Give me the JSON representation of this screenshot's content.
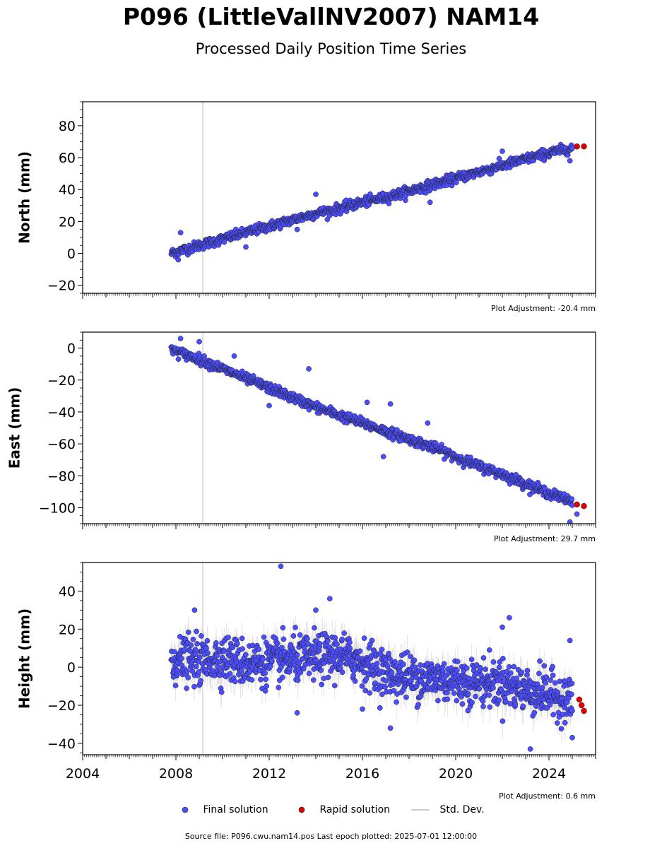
{
  "title": "P096 (LittleVallNV2007) NAM14",
  "subtitle": "Processed Daily Position Time Series",
  "footer": "Source file: P096.cwu.nam14.pos  Last epoch plotted: 2025-07-01 12:00:00",
  "legend": {
    "final": "Final solution",
    "rapid": "Rapid solution",
    "std": "Std. Dev."
  },
  "colors": {
    "final": "#4b4dff",
    "rapid": "#e00000",
    "std": "#cccccc",
    "marker_edge": "#222222"
  },
  "chart_data": [
    {
      "type": "scatter",
      "ylabel": "North (mm)",
      "adjustment": "Plot Adjustment: -20.4 mm",
      "xlim": [
        2004,
        2026
      ],
      "ylim": [
        -25,
        95
      ],
      "yticks": [
        -20,
        0,
        20,
        40,
        60,
        80
      ],
      "xticks": [
        2004,
        2008,
        2012,
        2016,
        2020,
        2024
      ],
      "xticklabels_visible": false,
      "vline": 2009.15,
      "final_series": {
        "name": "Final solution",
        "x": [
          2007.8,
          2008.0,
          2008.5,
          2009.0,
          2010.0,
          2011.0,
          2012.0,
          2013.0,
          2014.0,
          2015.0,
          2016.0,
          2017.0,
          2018.0,
          2019.0,
          2020.0,
          2021.0,
          2022.0,
          2023.0,
          2024.0,
          2025.0
        ],
        "y": [
          0,
          1,
          3,
          5,
          9,
          13,
          17,
          21,
          25,
          28,
          32,
          35,
          39,
          43,
          47,
          51,
          55,
          59,
          63,
          66
        ]
      },
      "rapid_series": {
        "name": "Rapid solution",
        "x": [
          2025.2,
          2025.5
        ],
        "y": [
          67,
          67
        ]
      },
      "outliers": [
        [
          2008.2,
          13
        ],
        [
          2008.1,
          -4
        ],
        [
          2011.0,
          4
        ],
        [
          2013.2,
          15
        ],
        [
          2014.0,
          37
        ],
        [
          2018.9,
          32
        ],
        [
          2022.0,
          64
        ],
        [
          2024.9,
          58
        ]
      ]
    },
    {
      "type": "scatter",
      "ylabel": "East (mm)",
      "adjustment": "Plot Adjustment: 29.7 mm",
      "xlim": [
        2004,
        2026
      ],
      "ylim": [
        -110,
        10
      ],
      "yticks": [
        -100,
        -80,
        -60,
        -40,
        -20,
        0
      ],
      "xticks": [
        2004,
        2008,
        2012,
        2016,
        2020,
        2024
      ],
      "xticklabels_visible": false,
      "vline": 2009.15,
      "final_series": {
        "name": "Final solution",
        "x": [
          2007.8,
          2008.0,
          2009.0,
          2010.0,
          2011.0,
          2012.0,
          2013.0,
          2014.0,
          2015.0,
          2016.0,
          2017.0,
          2018.0,
          2019.0,
          2020.0,
          2021.0,
          2022.0,
          2023.0,
          2024.0,
          2025.0
        ],
        "y": [
          0,
          -2,
          -7,
          -13,
          -19,
          -25,
          -31,
          -37,
          -42,
          -47,
          -52,
          -57,
          -62,
          -68,
          -74,
          -79,
          -85,
          -91,
          -96
        ]
      },
      "rapid_series": {
        "name": "Rapid solution",
        "x": [
          2025.2,
          2025.5
        ],
        "y": [
          -98,
          -99
        ]
      },
      "outliers": [
        [
          2008.2,
          6
        ],
        [
          2009.0,
          4
        ],
        [
          2010.5,
          -5
        ],
        [
          2012.0,
          -36
        ],
        [
          2013.7,
          -13
        ],
        [
          2016.2,
          -34
        ],
        [
          2016.9,
          -68
        ],
        [
          2017.2,
          -35
        ],
        [
          2018.8,
          -47
        ],
        [
          2024.9,
          -109
        ],
        [
          2025.2,
          -104
        ]
      ]
    },
    {
      "type": "scatter",
      "ylabel": "Height (mm)",
      "adjustment": "Plot Adjustment: 0.6 mm",
      "xlim": [
        2004,
        2026
      ],
      "ylim": [
        -46,
        55
      ],
      "yticks": [
        -40,
        -20,
        0,
        20,
        40
      ],
      "xticks": [
        2004,
        2008,
        2012,
        2016,
        2020,
        2024
      ],
      "xticklabels": [
        "2004",
        "2008",
        "2012",
        "2016",
        "2020",
        "2024"
      ],
      "xticklabels_visible": true,
      "vline": 2009.15,
      "final_series": {
        "name": "Final solution",
        "x": [
          2007.8,
          2009.0,
          2010.0,
          2011.0,
          2012.0,
          2013.0,
          2014.0,
          2015.0,
          2016.0,
          2017.0,
          2018.0,
          2019.0,
          2020.0,
          2021.0,
          2022.0,
          2023.0,
          2024.0,
          2025.0
        ],
        "y": [
          4,
          3,
          5,
          2,
          3,
          4,
          5,
          6,
          3,
          -3,
          -5,
          -6,
          -7,
          -8,
          -8,
          -12,
          -14,
          -18
        ]
      },
      "rapid_series": {
        "name": "Rapid solution",
        "x": [
          2025.3,
          2025.4,
          2025.5
        ],
        "y": [
          -17,
          -20,
          -23
        ]
      },
      "outliers": [
        [
          2012.5,
          53
        ],
        [
          2008.8,
          30
        ],
        [
          2014.6,
          36
        ],
        [
          2013.2,
          -24
        ],
        [
          2016.0,
          -22
        ],
        [
          2017.2,
          -32
        ],
        [
          2023.2,
          -43
        ],
        [
          2022.0,
          21
        ],
        [
          2022.3,
          26
        ],
        [
          2024.9,
          14
        ],
        [
          2025.0,
          -37
        ],
        [
          2014.0,
          30
        ]
      ]
    }
  ]
}
